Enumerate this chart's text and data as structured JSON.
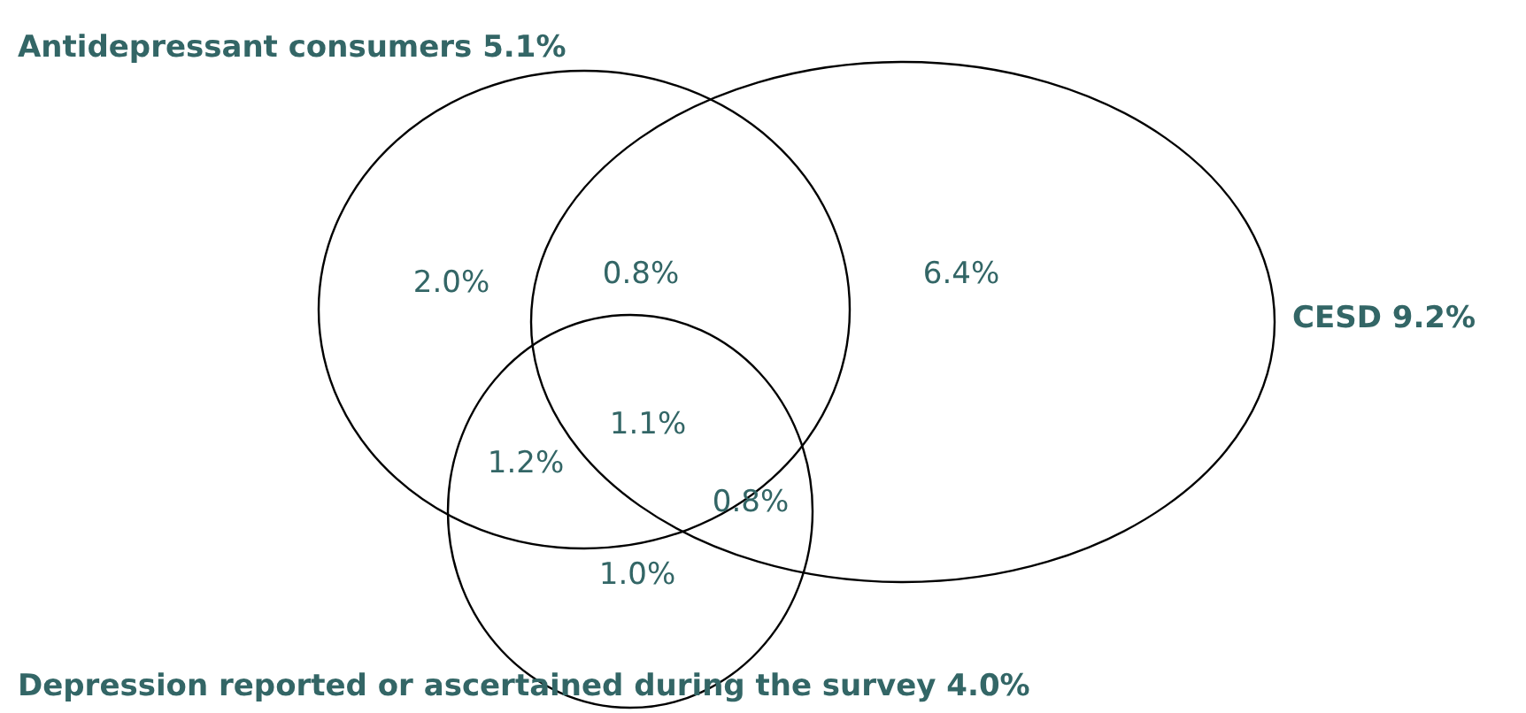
{
  "chart_data": {
    "type": "other",
    "annotations": [
      "Antidepressant consumers 5.1%",
      "CESD  9.2%",
      "Depression reported or ascertained during the survey 4.0%"
    ],
    "values": [
      2.0,
      0.8,
      6.4,
      1.1,
      1.2,
      0.8,
      1.0
    ],
    "value_labels": [
      "2.0%",
      "0.8%",
      "6.4%",
      "1.1%",
      "1.2%",
      "0.8%",
      "1.0%"
    ],
    "data_labels": true
  }
}
